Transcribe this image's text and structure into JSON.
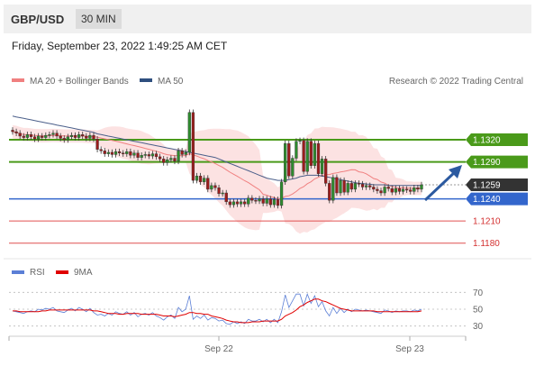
{
  "header": {
    "pair": "GBP/USD",
    "timeframe": "30 MIN"
  },
  "datetime": "Friday, September 23, 2022 1:49:25 AM CET",
  "legend": {
    "ma20_label": "MA 20 + Bollinger Bands",
    "ma50_label": "MA 50",
    "credit": "Research © 2022 Trading Central",
    "rsi_label": "RSI",
    "ma9_label": "9MA"
  },
  "colors": {
    "green": "#4a9a1a",
    "blue": "#3366cc",
    "red": "#e05050",
    "dark": "#333333",
    "candle_up": "#2e8b2e",
    "candle_down": "#9b1c1c"
  },
  "chart_data": [
    {
      "type": "candlestick",
      "ylim": [
        1.1165,
        1.1375
      ],
      "levels": [
        {
          "label": "1.1320",
          "value": 1.132,
          "kind": "resistance"
        },
        {
          "label": "1.1290",
          "value": 1.129,
          "kind": "resistance"
        },
        {
          "label": "1.1259",
          "value": 1.1259,
          "kind": "current"
        },
        {
          "label": "1.1240",
          "value": 1.124,
          "kind": "pivot"
        },
        {
          "label": "1.1210",
          "value": 1.121,
          "kind": "support"
        },
        {
          "label": "1.1180",
          "value": 1.118,
          "kind": "support"
        }
      ],
      "close": [
        1.1331,
        1.1329,
        1.1325,
        1.1323,
        1.1327,
        1.1324,
        1.1321,
        1.1325,
        1.1323,
        1.1326,
        1.1327,
        1.1329,
        1.1325,
        1.1322,
        1.132,
        1.1324,
        1.1326,
        1.1323,
        1.1327,
        1.1325,
        1.1322,
        1.1326,
        1.1321,
        1.1307,
        1.1305,
        1.1301,
        1.1303,
        1.13,
        1.1304,
        1.1302,
        1.1301,
        1.1304,
        1.1299,
        1.1302,
        1.1296,
        1.1299,
        1.13,
        1.1298,
        1.1301,
        1.1297,
        1.1294,
        1.1289,
        1.1293,
        1.1295,
        1.1291,
        1.1305,
        1.13,
        1.1303,
        1.1357,
        1.1265,
        1.1271,
        1.1263,
        1.1268,
        1.1253,
        1.1258,
        1.1255,
        1.1247,
        1.1248,
        1.1236,
        1.1232,
        1.1236,
        1.1233,
        1.1236,
        1.1233,
        1.1241,
        1.1238,
        1.1237,
        1.124,
        1.1234,
        1.124,
        1.1232,
        1.1239,
        1.1231,
        1.1263,
        1.1315,
        1.1271,
        1.1295,
        1.1318,
        1.1319,
        1.1277,
        1.1318,
        1.1285,
        1.1315,
        1.1274,
        1.1294,
        1.1261,
        1.1238,
        1.1269,
        1.1248,
        1.1265,
        1.1249,
        1.1261,
        1.1253,
        1.1261,
        1.126,
        1.1256,
        1.1258,
        1.1256,
        1.1253,
        1.1251,
        1.1248,
        1.1256,
        1.1254,
        1.1249,
        1.1254,
        1.125,
        1.1253,
        1.1252,
        1.125,
        1.1255,
        1.1253,
        1.1259
      ],
      "ma50": [
        1.1352,
        1.1351,
        1.135,
        1.1349,
        1.1348,
        1.1347,
        1.1346,
        1.1345,
        1.1344,
        1.1343,
        1.1342,
        1.1341,
        1.134,
        1.1339,
        1.1338,
        1.1337,
        1.1336,
        1.1335,
        1.1334,
        1.1333,
        1.1332,
        1.1331,
        1.133,
        1.1328,
        1.1327,
        1.1326,
        1.1325,
        1.1324,
        1.1323,
        1.1322,
        1.1321,
        1.132,
        1.1319,
        1.1318,
        1.1317,
        1.1316,
        1.1315,
        1.1314,
        1.1313,
        1.1312,
        1.1311,
        1.131,
        1.1309,
        1.1308,
        1.1307,
        1.1306,
        1.1305,
        1.1304,
        1.1303,
        1.1302,
        1.1301,
        1.13,
        1.1299,
        1.1298,
        1.1297,
        1.1296,
        1.1294,
        1.1292,
        1.129,
        1.1288,
        1.1286,
        1.1284,
        1.1282,
        1.128,
        1.1278,
        1.1276,
        1.1274,
        1.1272,
        1.127,
        1.1268,
        1.1267,
        1.1266,
        1.1265,
        1.1265,
        1.1265,
        1.1266,
        1.1267,
        1.1268,
        1.127,
        1.1271,
        1.1272,
        1.1272,
        1.1272,
        1.1272,
        1.1271,
        1.127,
        1.1269,
        1.1268,
        1.1267,
        1.1266,
        1.1265,
        1.1264,
        1.1263,
        1.1262,
        1.1261,
        1.1261,
        1.126,
        1.126,
        1.1259,
        1.1259,
        1.1259,
        1.1259,
        1.1258,
        1.1258,
        1.1258,
        1.1258,
        1.1258,
        1.1258,
        1.1258,
        1.1258,
        1.1258,
        1.1258
      ],
      "x_ticks": [
        "Sep 22",
        "Sep 23"
      ],
      "legend_entries": [
        "MA 20 + Bollinger Bands",
        "MA 50"
      ]
    },
    {
      "type": "line",
      "ylim": [
        20,
        80
      ],
      "y_ticks": [
        70,
        50,
        30
      ],
      "reference_levels": [
        70,
        50,
        30
      ],
      "series": [
        {
          "name": "RSI",
          "values": [
            48,
            47,
            46,
            45,
            47,
            48,
            47,
            50,
            49,
            51,
            50,
            52,
            48,
            47,
            46,
            49,
            51,
            48,
            52,
            50,
            47,
            51,
            46,
            43,
            44,
            42,
            45,
            43,
            47,
            45,
            44,
            47,
            43,
            46,
            41,
            44,
            45,
            43,
            46,
            42,
            40,
            37,
            41,
            43,
            39,
            52,
            47,
            50,
            66,
            38,
            42,
            39,
            43,
            37,
            40,
            39,
            36,
            37,
            33,
            32,
            35,
            33,
            35,
            33,
            38,
            36,
            36,
            38,
            35,
            38,
            34,
            38,
            34,
            47,
            67,
            52,
            60,
            68,
            68,
            54,
            68,
            57,
            66,
            53,
            59,
            48,
            42,
            52,
            45,
            51,
            46,
            50,
            47,
            50,
            49,
            48,
            49,
            48,
            47,
            46,
            45,
            49,
            48,
            46,
            48,
            47,
            48,
            48,
            47,
            49,
            48,
            50
          ]
        },
        {
          "name": "9MA",
          "values": [
            48,
            48,
            47,
            47,
            47,
            47,
            47,
            47,
            48,
            48,
            49,
            49,
            49,
            49,
            49,
            49,
            49,
            49,
            49,
            49,
            49,
            49,
            48,
            48,
            47,
            46,
            45,
            45,
            45,
            44,
            44,
            45,
            45,
            45,
            45,
            44,
            44,
            44,
            44,
            44,
            43,
            42,
            42,
            42,
            41,
            42,
            43,
            44,
            46,
            46,
            45,
            45,
            44,
            44,
            42,
            41,
            40,
            39,
            37,
            36,
            35,
            35,
            34,
            34,
            34,
            35,
            35,
            35,
            36,
            36,
            36,
            36,
            36,
            38,
            42,
            44,
            46,
            49,
            53,
            55,
            58,
            60,
            62,
            62,
            60,
            59,
            57,
            55,
            53,
            51,
            50,
            49,
            48,
            48,
            48,
            48,
            48,
            48,
            48,
            47,
            47,
            47,
            47,
            47,
            47,
            47,
            47,
            47,
            47,
            47,
            47,
            48
          ]
        }
      ],
      "x_ticks": [
        "Sep 22",
        "Sep 23"
      ],
      "legend_entries": [
        "RSI",
        "9MA"
      ]
    }
  ]
}
